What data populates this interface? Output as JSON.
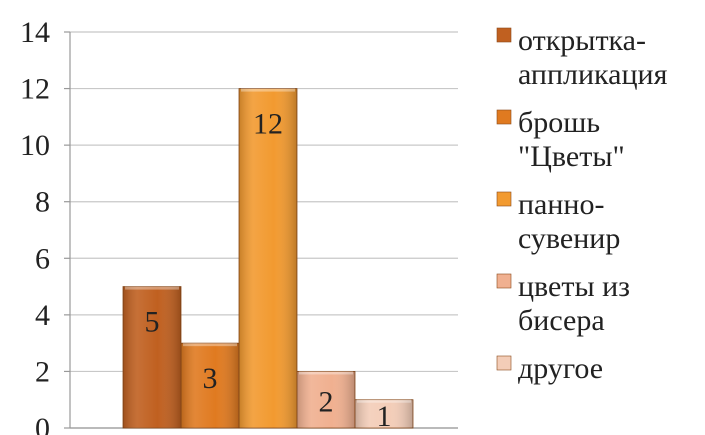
{
  "chart_data": {
    "type": "bar",
    "title": "",
    "xlabel": "",
    "ylabel": "",
    "ylim": [
      0,
      14
    ],
    "yticks": [
      0,
      2,
      4,
      6,
      8,
      10,
      12,
      14
    ],
    "grid": true,
    "legend_position": "right",
    "categories": [
      "открытка-аппликация",
      "брошь \"Цветы\"",
      "панно-сувенир",
      "цветы из бисера",
      "другое"
    ],
    "values": [
      5,
      3,
      12,
      2,
      1
    ],
    "data_labels": [
      "5",
      "3",
      "12",
      "2",
      "1"
    ],
    "colors": [
      "#c06020",
      "#e07a20",
      "#f29a30",
      "#f0b090",
      "#f3cdb8"
    ],
    "legend": [
      {
        "lines": [
          "открытка-",
          "аппликация"
        ]
      },
      {
        "lines": [
          "брошь",
          "\"Цветы\""
        ]
      },
      {
        "lines": [
          "панно-",
          "сувенир"
        ]
      },
      {
        "lines": [
          "цветы из",
          "бисера"
        ]
      },
      {
        "lines": [
          "другое"
        ]
      }
    ]
  }
}
